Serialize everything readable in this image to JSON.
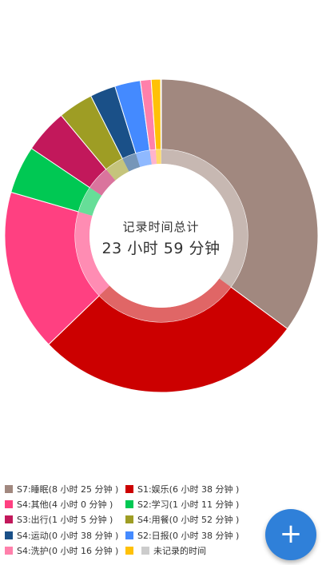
{
  "center": {
    "title": "记录时间总计",
    "value": "23 小时 59 分钟"
  },
  "chart_data": {
    "type": "pie",
    "total_minutes": 1440,
    "slices": [
      {
        "label": "S7:睡眠",
        "value": 505,
        "color": "#a1887f",
        "display": "S7:睡眠(8 小时 25 分钟 )"
      },
      {
        "label": "S1:娱乐",
        "value": 398,
        "color": "#cc0000",
        "display": "S1:娱乐(6 小时 38 分钟 )"
      },
      {
        "label": "S4:其他",
        "value": 240,
        "color": "#ff4081",
        "display": "S4:其他(4 小时 0 分钟 )"
      },
      {
        "label": "S2:学习",
        "value": 71,
        "color": "#00c853",
        "display": "S2:学习(1 小时 11 分钟 )"
      },
      {
        "label": "S3:出行",
        "value": 65,
        "color": "#c2185b",
        "display": "S3:出行(1 小时 5 分钟 )"
      },
      {
        "label": "S4:用餐",
        "value": 52,
        "color": "#9e9d24",
        "display": "S4:用餐(0 小时 52 分钟 )"
      },
      {
        "label": "S4:运动",
        "value": 38,
        "color": "#1a5088",
        "display": "S4:运动(0 小时 38 分钟 )"
      },
      {
        "label": "S2:日报",
        "value": 38,
        "color": "#448aff",
        "display": "S2:日报(0 小时 38 分钟 )"
      },
      {
        "label": "S4:洗护",
        "value": 16,
        "color": "#ff80ab",
        "display": "S4:洗护(0 小时 16 分钟 )"
      },
      {
        "label": "",
        "value": 14,
        "color": "#ffc107",
        "display": ""
      },
      {
        "label": "未记录的时间",
        "value": 1,
        "color": "#cccccc",
        "display": "未记录的时间"
      }
    ]
  },
  "legend": [
    [
      {
        "text": "S7:睡眠(8 小时 25 分钟 )",
        "color": "#a1887f"
      },
      {
        "text": "S1:娱乐(6 小时 38 分钟 )",
        "color": "#cc0000"
      }
    ],
    [
      {
        "text": "S4:其他(4 小时 0 分钟 )",
        "color": "#ff4081"
      },
      {
        "text": "S2:学习(1 小时 11 分钟 )",
        "color": "#00c853"
      }
    ],
    [
      {
        "text": "S3:出行(1 小时 5 分钟 )",
        "color": "#c2185b"
      },
      {
        "text": "S4:用餐(0 小时 52 分钟 )",
        "color": "#9e9d24"
      }
    ],
    [
      {
        "text": "S4:运动(0 小时 38 分钟 )",
        "color": "#1a5088"
      },
      {
        "text": "S2:日报(0 小时 38 分钟 )",
        "color": "#448aff"
      }
    ],
    [
      {
        "text": "S4:洗护(0 小时 16 分钟 )",
        "color": "#ff80ab"
      },
      {
        "text": "",
        "color": "#ffc107"
      },
      {
        "text": "未记录的时间",
        "color": "#cccccc"
      }
    ]
  ],
  "fab": {
    "label": "+",
    "icon": "plus-icon",
    "color": "#2f80d9"
  }
}
